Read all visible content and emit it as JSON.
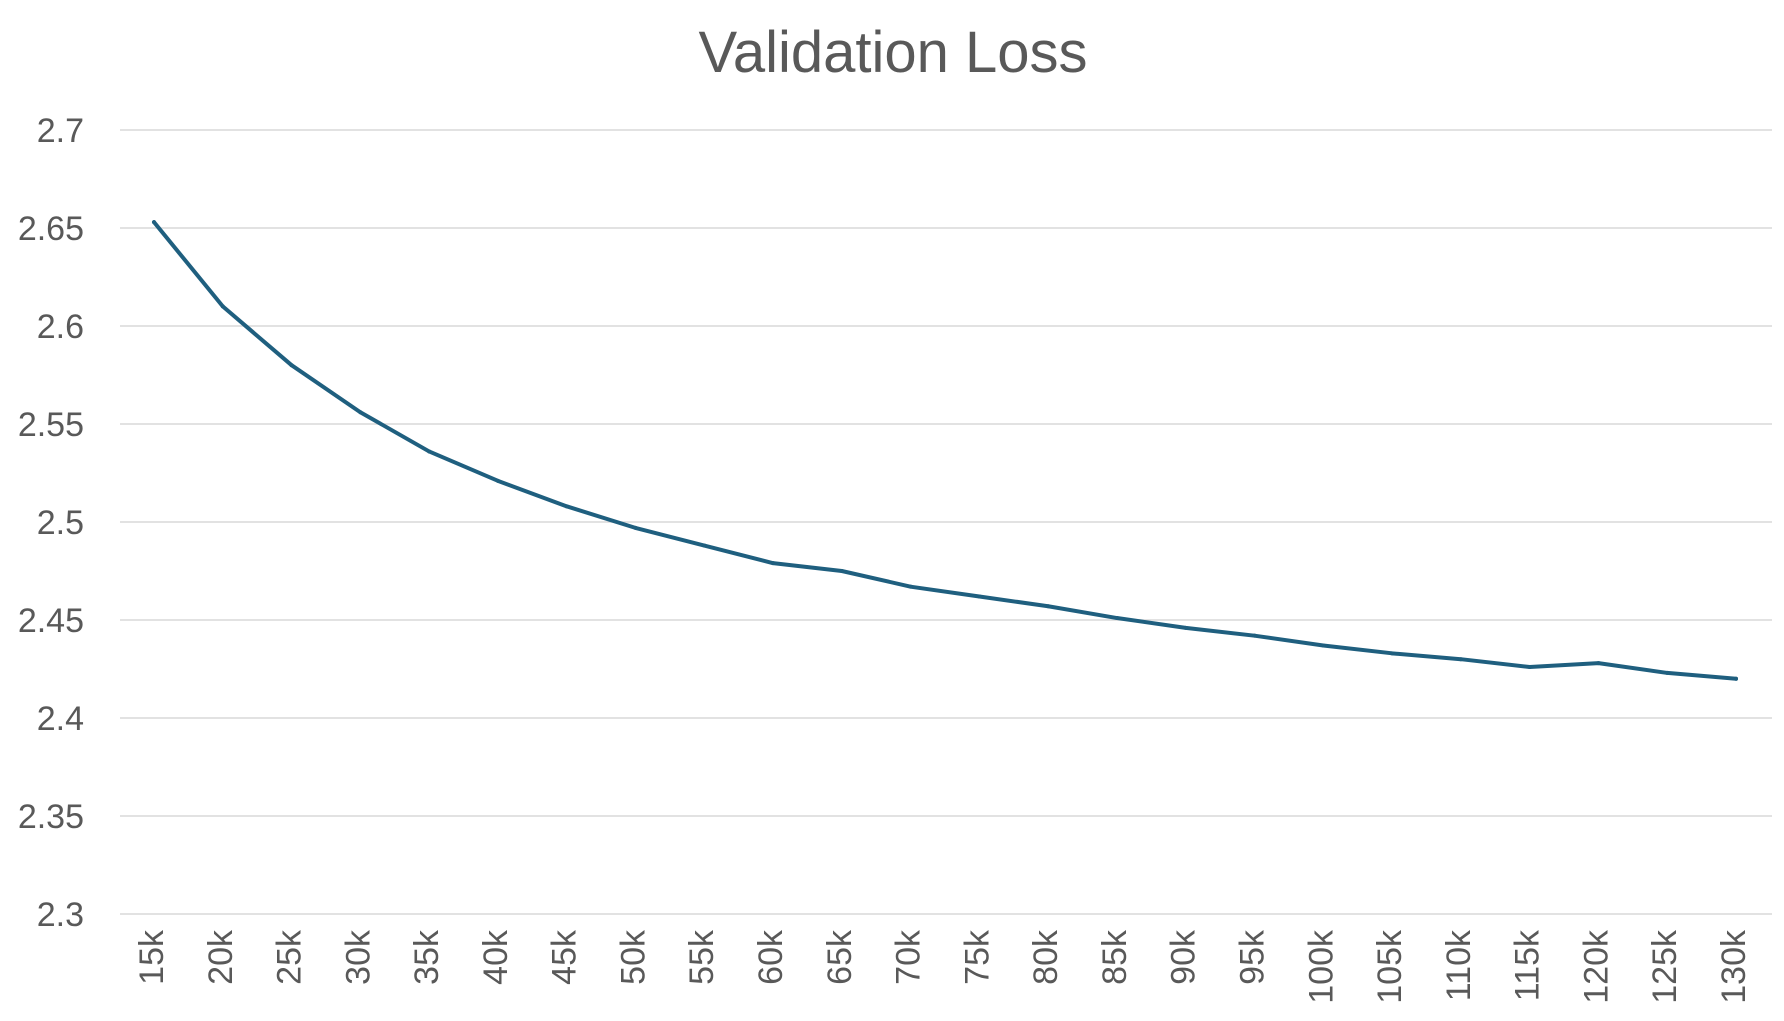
{
  "chart_data": {
    "type": "line",
    "title": "Validation Loss",
    "xlabel": "",
    "ylabel": "",
    "categories": [
      "15k",
      "20k",
      "25k",
      "30k",
      "35k",
      "40k",
      "45k",
      "50k",
      "55k",
      "60k",
      "65k",
      "70k",
      "75k",
      "80k",
      "85k",
      "90k",
      "95k",
      "100k",
      "105k",
      "110k",
      "115k",
      "120k",
      "125k",
      "130k"
    ],
    "series": [
      {
        "values": [
          2.653,
          2.61,
          2.58,
          2.556,
          2.536,
          2.521,
          2.508,
          2.497,
          2.488,
          2.479,
          2.475,
          2.467,
          2.462,
          2.457,
          2.451,
          2.446,
          2.442,
          2.437,
          2.433,
          2.43,
          2.426,
          2.428,
          2.423,
          2.42
        ],
        "color": "#1f5f7f"
      }
    ],
    "ylim": [
      2.3,
      2.7
    ],
    "y_ticks": [
      "2.3",
      "2.35",
      "2.4",
      "2.45",
      "2.5",
      "2.55",
      "2.6",
      "2.65",
      "2.7"
    ],
    "grid": true,
    "legend": "none",
    "x_tick_rotation": "vertical"
  }
}
